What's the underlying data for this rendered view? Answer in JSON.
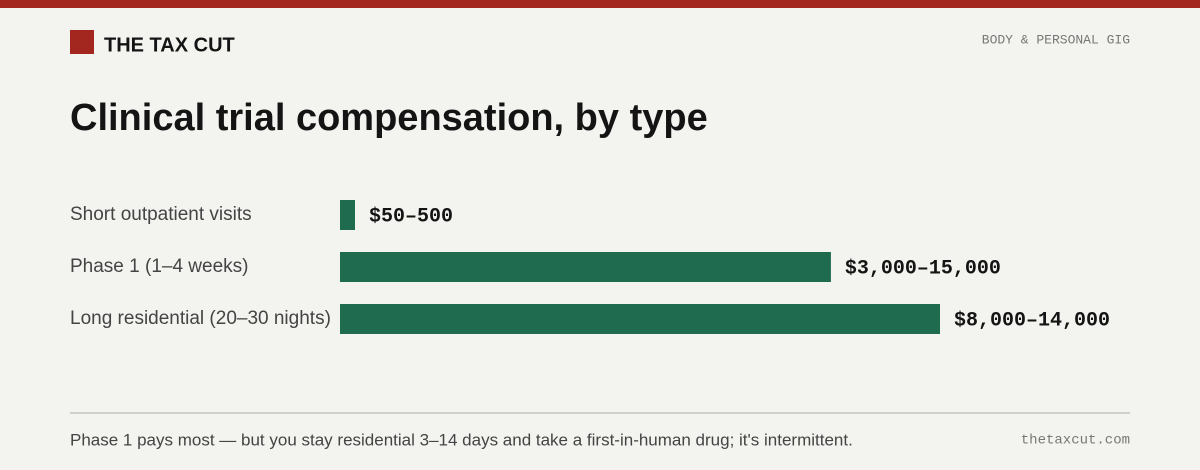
{
  "header": {
    "brand": "THE TAX CUT",
    "section": "BODY & PERSONAL GIG"
  },
  "chart_data": {
    "type": "range-bar",
    "title": "Clinical trial compensation, by type",
    "categories": [
      "Short outpatient visits",
      "Phase 1 (1–4 weeks)",
      "Long residential (20–30 nights)"
    ],
    "ranges": [
      [
        50,
        500
      ],
      [
        3000,
        15000
      ],
      [
        8000,
        14000
      ]
    ],
    "value_labels": [
      "$50–500",
      "$3,000–15,000",
      "$8,000–14,000"
    ],
    "color": "#1e6b4f"
  },
  "footer": {
    "note": "Phase 1 pays most — but you stay residential 3–14 days and take a first-in-human drug; it's intermittent.",
    "site": "thetaxcut.com"
  }
}
